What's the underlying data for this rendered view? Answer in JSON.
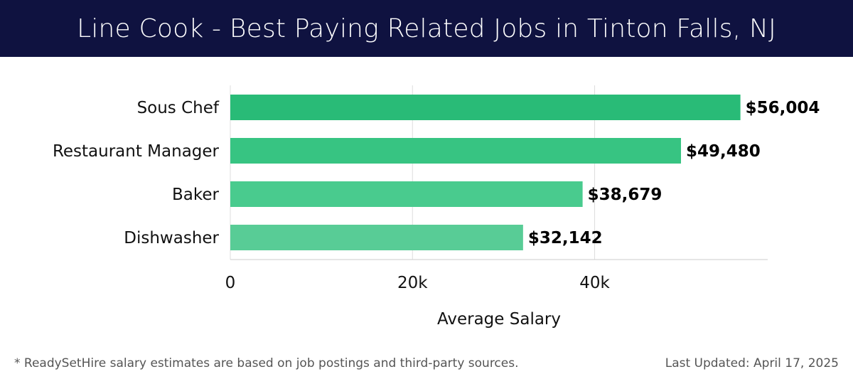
{
  "header": {
    "title": "Line Cook - Best Paying Related Jobs in Tinton Falls, NJ"
  },
  "chart_data": {
    "type": "bar",
    "orientation": "horizontal",
    "categories": [
      "Sous Chef",
      "Restaurant Manager",
      "Baker",
      "Dishwasher"
    ],
    "values": [
      56004,
      49480,
      38679,
      32142
    ],
    "value_labels": [
      "$56,004",
      "$49,480",
      "$38,679",
      "$32,142"
    ],
    "bar_colors": [
      "#29bb77",
      "#37c482",
      "#49cb8e",
      "#58cc96"
    ],
    "xlabel": "Average Salary",
    "ylabel": "",
    "xlim": [
      0,
      59000
    ],
    "x_ticks": [
      0,
      20000,
      40000
    ],
    "x_tick_labels": [
      "0",
      "20k",
      "40k"
    ],
    "grid": true,
    "legend": "none"
  },
  "footer": {
    "note": "* ReadySetHire salary estimates are based on job postings and third-party sources.",
    "updated": "Last Updated: April 17, 2025"
  },
  "colors": {
    "header_bg": "#0f1240",
    "header_text": "#ffffff",
    "grid": "#dddddd",
    "axis": "#cccccc",
    "label_text": "#111111",
    "value_text": "#000000",
    "footer_text": "#555555"
  }
}
